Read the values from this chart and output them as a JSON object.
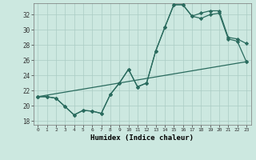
{
  "xlabel": "Humidex (Indice chaleur)",
  "xlim": [
    -0.5,
    23.5
  ],
  "ylim": [
    17.5,
    33.5
  ],
  "yticks": [
    18,
    20,
    22,
    24,
    26,
    28,
    30,
    32
  ],
  "xticks": [
    0,
    1,
    2,
    3,
    4,
    5,
    6,
    7,
    8,
    9,
    10,
    11,
    12,
    13,
    14,
    15,
    16,
    17,
    18,
    19,
    20,
    21,
    22,
    23
  ],
  "background_color": "#cce8e0",
  "grid_color": "#aaccc4",
  "line_color": "#2a6b5e",
  "line1_x": [
    0,
    1,
    2,
    3,
    4,
    5,
    6,
    7,
    8,
    9,
    10,
    11,
    12,
    13,
    14,
    15,
    16,
    17,
    18,
    19,
    20,
    21,
    22,
    23
  ],
  "line1_y": [
    21.2,
    21.2,
    21.0,
    19.9,
    18.8,
    19.4,
    19.3,
    19.0,
    21.5,
    23.0,
    24.8,
    22.5,
    23.0,
    27.2,
    30.3,
    33.3,
    33.3,
    31.8,
    31.5,
    32.0,
    32.2,
    28.8,
    28.5,
    25.8
  ],
  "line2_x": [
    0,
    1,
    2,
    3,
    4,
    5,
    6,
    7,
    8,
    9,
    10,
    11,
    12,
    13,
    14,
    15,
    16,
    17,
    18,
    19,
    20,
    21,
    22,
    23
  ],
  "line2_y": [
    21.2,
    21.2,
    21.0,
    19.9,
    18.8,
    19.4,
    19.3,
    19.0,
    21.5,
    23.0,
    24.8,
    22.5,
    23.0,
    27.2,
    30.3,
    33.3,
    33.3,
    31.8,
    32.2,
    32.5,
    32.5,
    29.0,
    28.8,
    28.2
  ],
  "line3_x": [
    0,
    23
  ],
  "line3_y": [
    21.2,
    25.8
  ]
}
